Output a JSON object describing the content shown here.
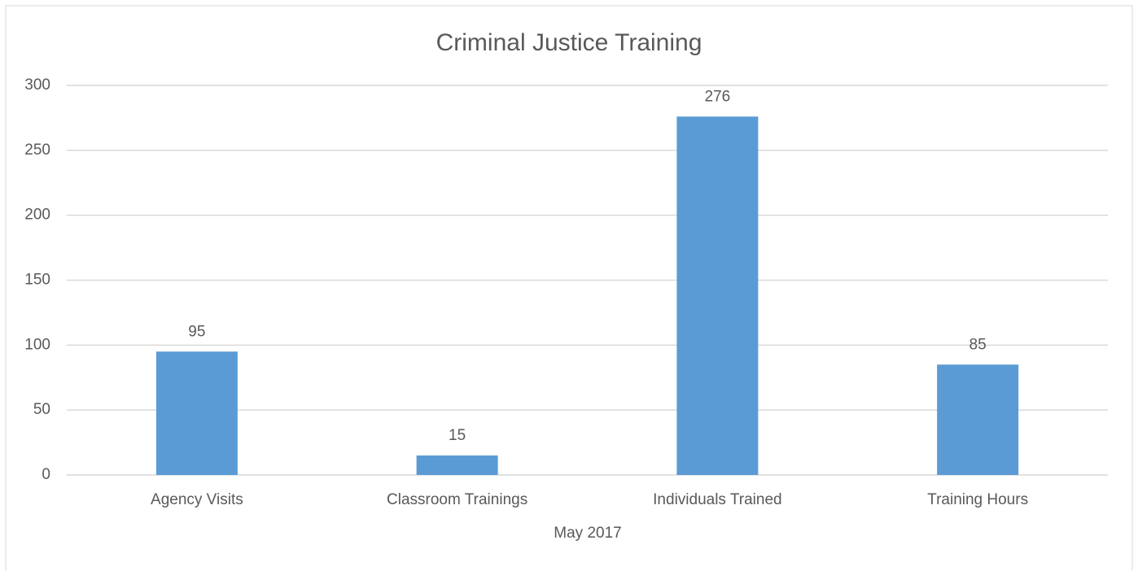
{
  "chart_data": {
    "type": "bar",
    "title": "Criminal Justice Training",
    "x_label": "May 2017",
    "categories": [
      "Agency Visits",
      "Classroom Trainings",
      "Individuals Trained",
      "Training Hours"
    ],
    "values": [
      95,
      15,
      276,
      85
    ],
    "color": "#5b9bd5",
    "ylim": [
      0,
      300
    ],
    "yticks": [
      0,
      50,
      100,
      150,
      200,
      250,
      300
    ],
    "grid": true,
    "data_labels": true
  }
}
